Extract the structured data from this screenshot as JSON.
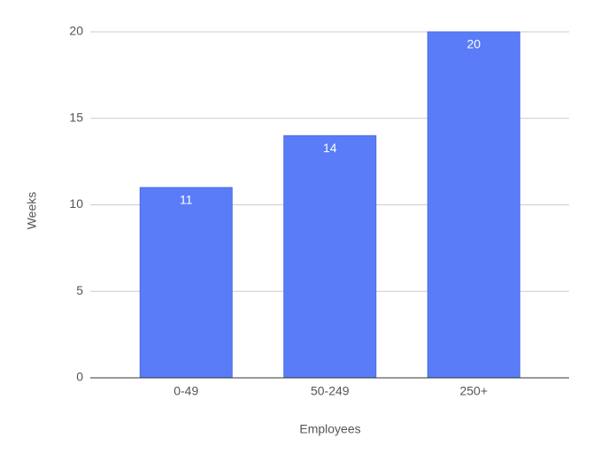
{
  "chart_data": {
    "type": "bar",
    "x_label": "Employees",
    "y_label": "Weeks",
    "categories": [
      "0-49",
      "50-249",
      "250+"
    ],
    "values": [
      11,
      14,
      20
    ],
    "color": "#5a7cf8",
    "ylim": [
      0,
      20
    ],
    "yticks": [
      0,
      5,
      10,
      15,
      20
    ],
    "grid": true
  }
}
